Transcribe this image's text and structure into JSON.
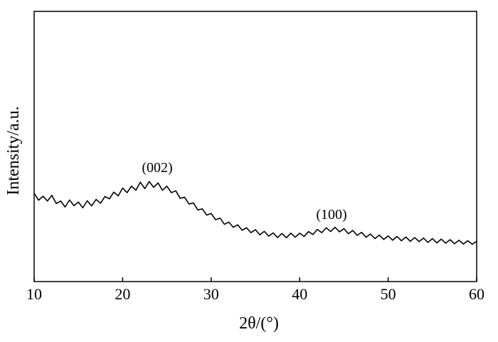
{
  "chart_data": {
    "type": "line",
    "xlabel": "2θ/(°)",
    "ylabel": "Intensity/a.u.",
    "annotations": [
      "(002)",
      "(100)"
    ],
    "xlim": [
      10,
      60
    ],
    "xticks": [
      10,
      20,
      30,
      40,
      50,
      60
    ],
    "ylim": [
      0,
      100
    ],
    "series": [
      {
        "color": "#000000",
        "x": [
          10,
          10.5,
          11,
          11.5,
          12,
          12.5,
          13,
          13.5,
          14,
          14.5,
          15,
          15.5,
          16,
          16.5,
          17,
          17.5,
          18,
          18.5,
          19,
          19.5,
          20,
          20.5,
          21,
          21.5,
          22,
          22.5,
          23,
          23.5,
          24,
          24.5,
          25,
          25.5,
          26,
          26.5,
          27,
          27.5,
          28,
          28.5,
          29,
          29.5,
          30,
          30.5,
          31,
          31.5,
          32,
          32.5,
          33,
          33.5,
          34,
          34.5,
          35,
          35.5,
          36,
          36.5,
          37,
          37.5,
          38,
          38.5,
          39,
          39.5,
          40,
          40.5,
          41,
          41.5,
          42,
          42.5,
          43,
          43.5,
          44,
          44.5,
          45,
          45.5,
          46,
          46.5,
          47,
          47.5,
          48,
          48.5,
          49,
          49.5,
          50,
          50.5,
          51,
          51.5,
          52,
          52.5,
          53,
          53.5,
          54,
          54.5,
          55,
          55.5,
          56,
          56.5,
          57,
          57.5,
          58,
          58.5,
          59,
          59.5,
          60
        ],
        "values": [
          32.7,
          30.1,
          31.6,
          29.8,
          31.9,
          28.9,
          29.8,
          27.6,
          30.2,
          28.1,
          29.4,
          27.3,
          29.9,
          28.0,
          30.4,
          29.0,
          31.5,
          30.6,
          33.1,
          31.7,
          34.6,
          32.9,
          35.3,
          33.8,
          36.8,
          34.4,
          37.0,
          34.9,
          36.5,
          33.8,
          35.3,
          32.9,
          33.6,
          30.8,
          31.2,
          28.7,
          29.1,
          26.5,
          26.9,
          24.6,
          25.2,
          22.9,
          23.5,
          21.2,
          22.0,
          20.1,
          21.0,
          19.0,
          19.9,
          18.1,
          19.2,
          17.3,
          18.6,
          16.8,
          18.0,
          16.3,
          17.8,
          16.2,
          17.9,
          16.4,
          17.9,
          16.7,
          18.5,
          17.4,
          19.3,
          18.1,
          19.9,
          18.5,
          20.1,
          18.4,
          19.6,
          17.7,
          18.9,
          17.1,
          18.2,
          16.4,
          17.6,
          15.9,
          17.2,
          15.6,
          16.9,
          15.3,
          16.7,
          15.1,
          16.5,
          14.9,
          16.3,
          14.8,
          16.1,
          14.5,
          15.9,
          14.3,
          15.7,
          14.2,
          15.5,
          14.0,
          15.3,
          13.9,
          15.1,
          13.8,
          14.9
        ]
      }
    ]
  }
}
